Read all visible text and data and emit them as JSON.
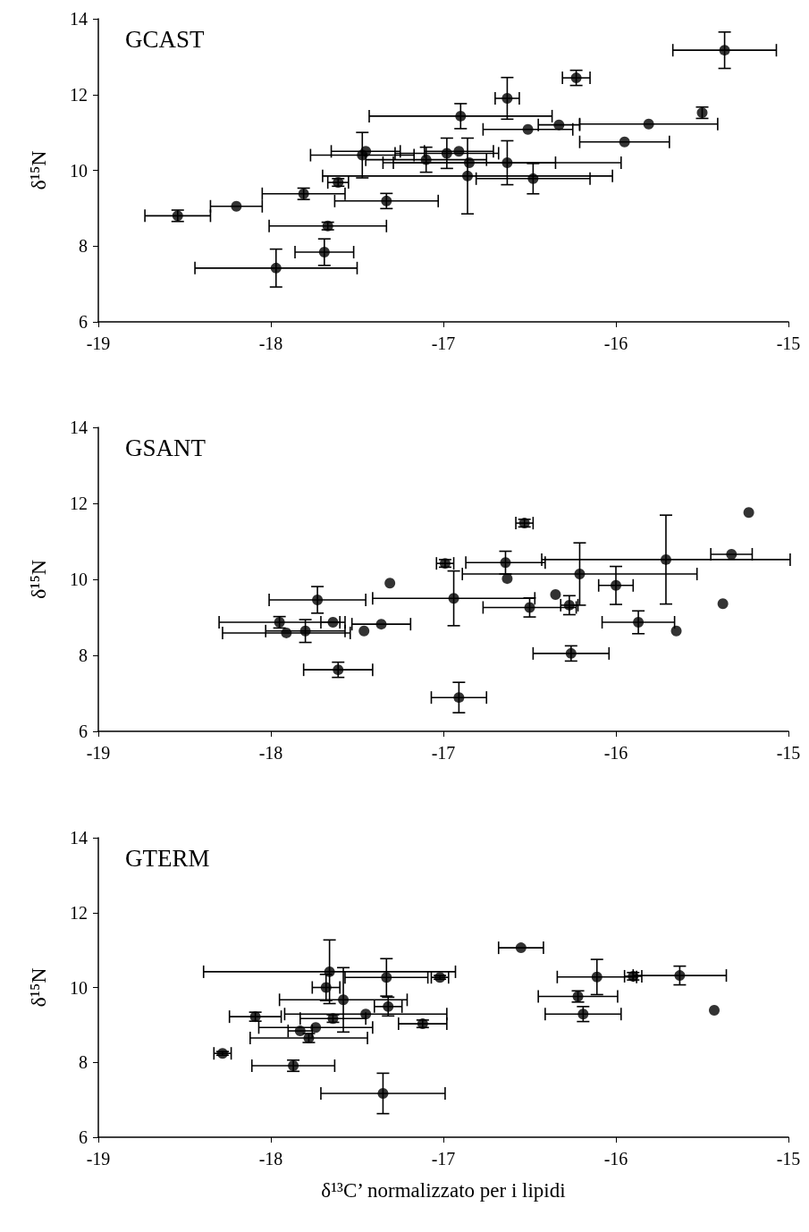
{
  "chart_data": [
    {
      "type": "scatter",
      "title": "GCAST",
      "ylabel": "δ¹⁵N",
      "xlim": [
        -19,
        -15
      ],
      "xticks": [
        -19,
        -18,
        -17,
        -16,
        -15
      ],
      "ylim": [
        6,
        14
      ],
      "yticks": [
        6,
        8,
        10,
        12,
        14
      ],
      "marker": "circle",
      "series": [
        {
          "color": "#000000",
          "x": [
            -18.54,
            -18.2,
            -17.81,
            -17.67,
            -17.97,
            -17.69,
            -17.61,
            -17.33,
            -17.47,
            -17.45,
            -16.9,
            -16.63,
            -16.23,
            -15.37,
            -15.5,
            -15.81,
            -16.33,
            -16.51,
            -15.95,
            -16.98,
            -16.91,
            -17.1,
            -16.85,
            -16.86,
            -16.63,
            -16.48
          ],
          "values": [
            8.8,
            9.05,
            9.38,
            8.53,
            7.42,
            7.84,
            9.68,
            9.19,
            10.4,
            10.5,
            11.43,
            11.9,
            12.44,
            13.17,
            11.52,
            11.22,
            11.2,
            11.08,
            10.75,
            10.45,
            10.5,
            10.28,
            10.2,
            9.85,
            10.2,
            9.78
          ],
          "xerrors": [
            0.19,
            0.15,
            0.24,
            0.34,
            0.47,
            0.17,
            0.06,
            0.3,
            0.3,
            0.2,
            0.53,
            0.07,
            0.08,
            0.3,
            null,
            0.4,
            0.12,
            0.26,
            0.26,
            0.3,
            0.2,
            0.35,
            0.5,
            0.84,
            0.66,
            0.33
          ],
          "errors": [
            0.15,
            null,
            0.15,
            0.1,
            0.5,
            0.35,
            0.1,
            0.2,
            0.6,
            null,
            0.33,
            0.55,
            0.2,
            0.48,
            0.15,
            null,
            null,
            null,
            null,
            0.4,
            null,
            0.33,
            null,
            1.0,
            0.58,
            0.4
          ]
        }
      ]
    },
    {
      "type": "scatter",
      "title": "GSANT",
      "ylabel": "δ¹⁵N",
      "xlim": [
        -19,
        -15
      ],
      "xticks": [
        -19,
        -18,
        -17,
        -16,
        -15
      ],
      "ylim": [
        6,
        14
      ],
      "yticks": [
        6,
        8,
        10,
        12,
        14
      ],
      "marker": "circle",
      "series": [
        {
          "color": "#000000",
          "x": [
            -17.73,
            -17.95,
            -17.91,
            -17.8,
            -17.64,
            -17.46,
            -17.36,
            -17.31,
            -17.61,
            -16.94,
            -16.91,
            -16.53,
            -16.64,
            -16.63,
            -16.21,
            -15.71,
            -15.33,
            -15.23,
            -15.38,
            -16.0,
            -16.5,
            -16.35,
            -16.27,
            -15.87,
            -15.65,
            -16.26,
            -16.99
          ],
          "values": [
            9.46,
            8.87,
            8.59,
            8.64,
            8.87,
            8.64,
            8.82,
            9.9,
            7.62,
            9.5,
            6.89,
            11.48,
            10.44,
            10.02,
            10.14,
            10.52,
            10.66,
            11.76,
            9.36,
            9.84,
            9.26,
            9.6,
            9.32,
            8.87,
            8.64,
            8.05,
            10.42
          ],
          "xerrors": [
            0.28,
            0.35,
            0.37,
            0.23,
            0.07,
            null,
            0.17,
            null,
            0.2,
            0.47,
            0.16,
            0.05,
            0.23,
            null,
            0.68,
            0.72,
            0.12,
            null,
            null,
            0.1,
            0.27,
            null,
            0.05,
            0.21,
            null,
            0.22,
            0.05
          ],
          "errors": [
            0.35,
            0.15,
            null,
            0.3,
            null,
            null,
            null,
            null,
            0.2,
            0.72,
            0.4,
            0.1,
            0.3,
            null,
            0.82,
            1.17,
            null,
            null,
            null,
            0.5,
            0.25,
            null,
            0.25,
            0.3,
            null,
            0.2,
            0.1
          ]
        }
      ]
    },
    {
      "type": "scatter",
      "title": "GTERM",
      "ylabel": "δ¹⁵N",
      "xlabel": "δ¹³C’ normalizzato per i lipidi",
      "xlim": [
        -19,
        -15
      ],
      "xticks": [
        -19,
        -18,
        -17,
        -16,
        -15
      ],
      "ylim": [
        6,
        14
      ],
      "yticks": [
        6,
        8,
        10,
        12,
        14
      ],
      "marker": "circle",
      "series": [
        {
          "color": "#000000",
          "x": [
            -18.28,
            -17.87,
            -17.35,
            -18.09,
            -17.78,
            -17.83,
            -17.74,
            -17.64,
            -17.45,
            -17.58,
            -17.68,
            -17.66,
            -17.32,
            -17.33,
            -17.02,
            -17.12,
            -16.55,
            -16.11,
            -15.9,
            -15.63,
            -16.22,
            -16.19,
            -15.43
          ],
          "values": [
            8.24,
            7.91,
            7.17,
            9.22,
            8.65,
            8.84,
            8.93,
            9.17,
            9.29,
            9.67,
            10.0,
            10.42,
            9.49,
            10.27,
            10.27,
            9.03,
            11.06,
            10.28,
            10.3,
            10.32,
            9.76,
            9.29,
            9.39
          ],
          "xerrors": [
            0.05,
            0.24,
            0.36,
            0.15,
            0.34,
            0.07,
            0.33,
            0.19,
            0.47,
            0.37,
            0.08,
            0.73,
            0.08,
            0.24,
            0.05,
            0.14,
            0.13,
            0.23,
            0.05,
            0.27,
            0.23,
            0.22,
            null
          ],
          "errors": [
            0.05,
            0.15,
            0.54,
            0.12,
            0.12,
            null,
            null,
            0.1,
            null,
            0.86,
            0.35,
            0.85,
            0.25,
            0.5,
            0.05,
            0.1,
            null,
            0.47,
            0.1,
            0.25,
            0.15,
            0.2,
            null
          ]
        }
      ]
    }
  ]
}
